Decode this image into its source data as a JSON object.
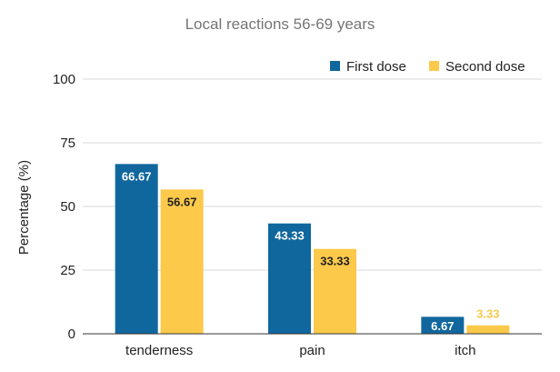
{
  "chart_data": {
    "type": "bar",
    "title": "Local reactions 56-69 years",
    "ylabel": "Percentage (%)",
    "xlabel": "",
    "ylim": [
      0,
      100
    ],
    "yticks": [
      0,
      25,
      50,
      75,
      100
    ],
    "categories": [
      "tenderness",
      "pain",
      "itch"
    ],
    "grid": true,
    "legend_position": "top-right",
    "series": [
      {
        "name": "First dose",
        "color": "#10679e",
        "values": [
          66.67,
          43.33,
          6.67
        ],
        "labels": [
          "66.67",
          "43.33",
          "6.67"
        ]
      },
      {
        "name": "Second dose",
        "color": "#fcc94a",
        "values": [
          56.67,
          33.33,
          3.33
        ],
        "labels": [
          "56.67",
          "33.33",
          "3.33"
        ]
      }
    ]
  }
}
